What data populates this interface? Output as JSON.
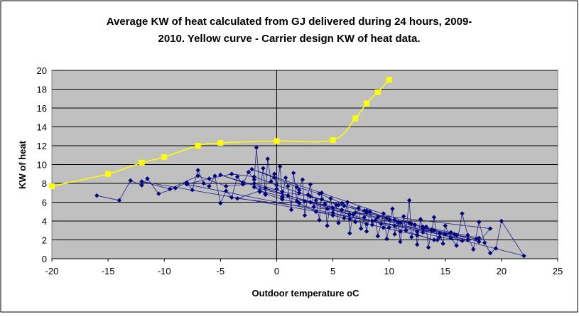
{
  "chart_data": {
    "type": "scatter",
    "title_line1": "Average KW of heat calculated from GJ delivered during 24 hours, 2009-",
    "title_line2": "2010. Yellow curve - Carrier design KW of heat data.",
    "xlabel": "Outdoor temperature oC",
    "ylabel": "KW of heat",
    "xlim": [
      -20,
      25
    ],
    "ylim": [
      0,
      20
    ],
    "xticks": [
      -20,
      -15,
      -10,
      -5,
      0,
      5,
      10,
      15,
      20,
      25
    ],
    "yticks": [
      0,
      2,
      4,
      6,
      8,
      10,
      12,
      14,
      16,
      18,
      20
    ],
    "grid": "horizontal",
    "plot_background": "#c0c0c0",
    "series": [
      {
        "kind": "design-curve",
        "color": "#ffff00",
        "marker": "square",
        "x": [
          -20,
          -15,
          -12,
          -10,
          -7,
          -5,
          0,
          5,
          7,
          8,
          9,
          10
        ],
        "y": [
          7.7,
          9.0,
          10.2,
          10.8,
          12.0,
          12.3,
          12.5,
          12.6,
          14.9,
          16.5,
          17.7,
          19.0
        ]
      },
      {
        "kind": "measured-daily",
        "color": "#000080",
        "marker": "diamond",
        "x": [
          -16,
          -14,
          -13,
          -12,
          -11.5,
          -10.5,
          -9,
          -8,
          -7.5,
          -7,
          -6.5,
          -6,
          -5.5,
          -5,
          -4.5,
          -4,
          -3.5,
          -3,
          -2.5,
          -2,
          -1.8,
          -1.5,
          -1.2,
          -1,
          -0.8,
          -0.5,
          -0.2,
          0,
          0.3,
          0.5,
          0.8,
          1,
          1.3,
          1.5,
          1.8,
          2,
          2.3,
          2.5,
          2.8,
          3,
          3.3,
          3.5,
          3.8,
          4,
          4.3,
          4.5,
          4.8,
          5,
          5.3,
          5.5,
          5.8,
          6,
          6.3,
          6.5,
          6.8,
          7,
          7.3,
          7.5,
          7.8,
          8,
          8.3,
          8.5,
          8.8,
          9,
          9.3,
          9.5,
          9.8,
          10,
          10.3,
          10.5,
          10.8,
          11,
          11.3,
          11.5,
          11.8,
          12,
          12.3,
          12.5,
          12.8,
          13,
          13.3,
          13.5,
          13.8,
          14,
          14.3,
          14.5,
          14.8,
          15,
          15.5,
          16,
          16.5,
          17,
          17.5,
          18,
          18.5,
          19,
          19.5,
          20,
          22,
          -2,
          -1,
          0.5,
          2,
          3.5,
          5,
          6.5,
          8,
          9.5,
          11,
          12.5,
          14,
          -5,
          -3,
          -1,
          1,
          3,
          5,
          7,
          9,
          11,
          13,
          15,
          17,
          -8,
          -6,
          -4,
          -2,
          0,
          2,
          4,
          6,
          8,
          10,
          12,
          14,
          16,
          18,
          19,
          -3.5,
          -1.5,
          0.5,
          2.5,
          4.5,
          6.5,
          8.5,
          10.5,
          12.5,
          14.5,
          16.5,
          -2.2,
          -0.2,
          1.8,
          3.8,
          5.8,
          7.8,
          9.8,
          11.8,
          13.8,
          15.8,
          17.8,
          -12,
          -9.5,
          -7,
          -4.5,
          -2,
          0.5,
          3,
          5.5,
          8,
          10.5,
          13,
          15.5,
          18
        ],
        "y": [
          6.7,
          6.2,
          8.3,
          7.8,
          8.5,
          6.9,
          7.5,
          8.1,
          7.3,
          9.4,
          8.0,
          7.7,
          8.8,
          5.9,
          7.2,
          6.5,
          8.7,
          7.9,
          9.2,
          8.4,
          11.8,
          7.1,
          9.6,
          6.8,
          10.6,
          8.2,
          9.0,
          7.4,
          9.8,
          6.5,
          8.6,
          7.7,
          5.2,
          9.1,
          6.1,
          7.3,
          8.4,
          4.6,
          6.8,
          7.9,
          5.5,
          6.2,
          4.1,
          7.0,
          5.8,
          3.5,
          6.4,
          4.9,
          5.7,
          3.8,
          5.2,
          4.3,
          6.0,
          2.7,
          4.7,
          3.9,
          5.4,
          3.2,
          4.4,
          2.9,
          5.0,
          3.6,
          4.1,
          2.4,
          3.7,
          4.8,
          2.1,
          3.3,
          5.3,
          2.6,
          3.9,
          1.8,
          4.5,
          3.0,
          6.2,
          2.3,
          3.6,
          1.5,
          4.2,
          2.8,
          3.4,
          1.2,
          3.0,
          4.4,
          2.0,
          2.7,
          1.6,
          3.5,
          2.2,
          1.4,
          4.8,
          2.5,
          1.0,
          3.9,
          1.7,
          0.6,
          1.1,
          4.0,
          0.3,
          7.6,
          6.9,
          6.3,
          5.9,
          5.0,
          4.6,
          4.2,
          3.7,
          3.3,
          2.9,
          2.5,
          2.0,
          8.9,
          8.1,
          7.5,
          6.7,
          6.0,
          5.4,
          4.9,
          4.4,
          3.8,
          3.2,
          2.6,
          2.0,
          7.9,
          8.5,
          9.0,
          8.7,
          7.8,
          7.0,
          6.3,
          5.6,
          4.9,
          4.2,
          3.7,
          3.0,
          2.5,
          1.8,
          3.2,
          6.4,
          7.2,
          6.6,
          6.1,
          5.3,
          4.7,
          4.0,
          3.5,
          2.9,
          2.3,
          1.9,
          9.5,
          8.6,
          7.6,
          6.9,
          5.9,
          5.1,
          4.3,
          3.8,
          3.1,
          2.6,
          2.1,
          8.2,
          7.4,
          8.8,
          7.7,
          8.0,
          7.1,
          6.6,
          5.7,
          5.1,
          4.1,
          3.4,
          2.8,
          2.2
        ]
      }
    ]
  }
}
